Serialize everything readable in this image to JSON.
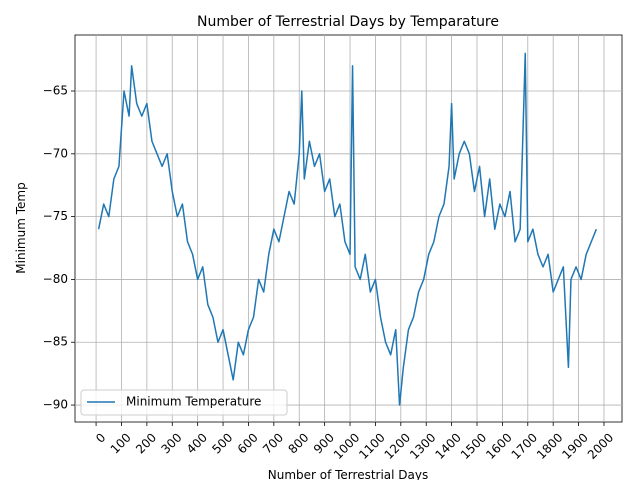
{
  "chart_data": {
    "type": "line",
    "title": "Number of Terrestrial Days by Temparature",
    "xlabel": "Number of Terrestrial Days",
    "ylabel": "Minimum Temp",
    "xlim": [
      -83,
      2071
    ],
    "ylim": [
      -91.35,
      -60.54
    ],
    "xticks": [
      0,
      100,
      200,
      300,
      400,
      500,
      600,
      700,
      800,
      900,
      1000,
      1100,
      1200,
      1300,
      1400,
      1500,
      1600,
      1700,
      1800,
      1900,
      2000
    ],
    "yticks": [
      {
        "value": -90,
        "label": "−90"
      },
      {
        "value": -85,
        "label": "−85"
      },
      {
        "value": -80,
        "label": "−80"
      },
      {
        "value": -75,
        "label": "−75"
      },
      {
        "value": -70,
        "label": "−70"
      },
      {
        "value": -65,
        "label": "−65"
      }
    ],
    "grid": true,
    "legend": "lower left",
    "x": [
      10,
      30,
      50,
      70,
      90,
      100,
      110,
      130,
      140,
      160,
      180,
      200,
      220,
      240,
      260,
      280,
      300,
      320,
      340,
      360,
      380,
      400,
      420,
      440,
      460,
      480,
      500,
      520,
      540,
      560,
      580,
      600,
      620,
      640,
      660,
      680,
      700,
      720,
      740,
      760,
      780,
      800,
      810,
      820,
      840,
      860,
      880,
      900,
      920,
      940,
      960,
      980,
      1000,
      1010,
      1020,
      1040,
      1060,
      1080,
      1100,
      1120,
      1140,
      1160,
      1180,
      1195,
      1210,
      1230,
      1250,
      1270,
      1290,
      1310,
      1330,
      1350,
      1370,
      1390,
      1400,
      1410,
      1430,
      1450,
      1470,
      1490,
      1510,
      1530,
      1550,
      1570,
      1590,
      1610,
      1630,
      1650,
      1670,
      1690,
      1700,
      1720,
      1740,
      1760,
      1780,
      1800,
      1820,
      1840,
      1860,
      1870,
      1890,
      1910,
      1930,
      1950,
      1970
    ],
    "series": [
      {
        "name": "Minimum Temperature",
        "color": "#1f77b4",
        "values": [
          -76,
          -74,
          -75,
          -72,
          -71,
          -68,
          -65,
          -67,
          -63,
          -66,
          -67,
          -66,
          -69,
          -70,
          -71,
          -70,
          -73,
          -75,
          -74,
          -77,
          -78,
          -80,
          -79,
          -82,
          -83,
          -85,
          -84,
          -86,
          -88,
          -85,
          -86,
          -84,
          -83,
          -80,
          -81,
          -78,
          -76,
          -77,
          -75,
          -73,
          -74,
          -70,
          -65,
          -72,
          -69,
          -71,
          -70,
          -73,
          -72,
          -75,
          -74,
          -77,
          -78,
          -63,
          -79,
          -80,
          -78,
          -81,
          -80,
          -83,
          -85,
          -86,
          -84,
          -90,
          -87,
          -84,
          -83,
          -81,
          -80,
          -78,
          -77,
          -75,
          -74,
          -71,
          -66,
          -72,
          -70,
          -69,
          -70,
          -73,
          -71,
          -75,
          -72,
          -76,
          -74,
          -75,
          -73,
          -77,
          -76,
          -62,
          -77,
          -76,
          -78,
          -79,
          -78,
          -81,
          -80,
          -79,
          -87,
          -80,
          -79,
          -80,
          -78,
          -77,
          -76
        ]
      }
    ]
  }
}
